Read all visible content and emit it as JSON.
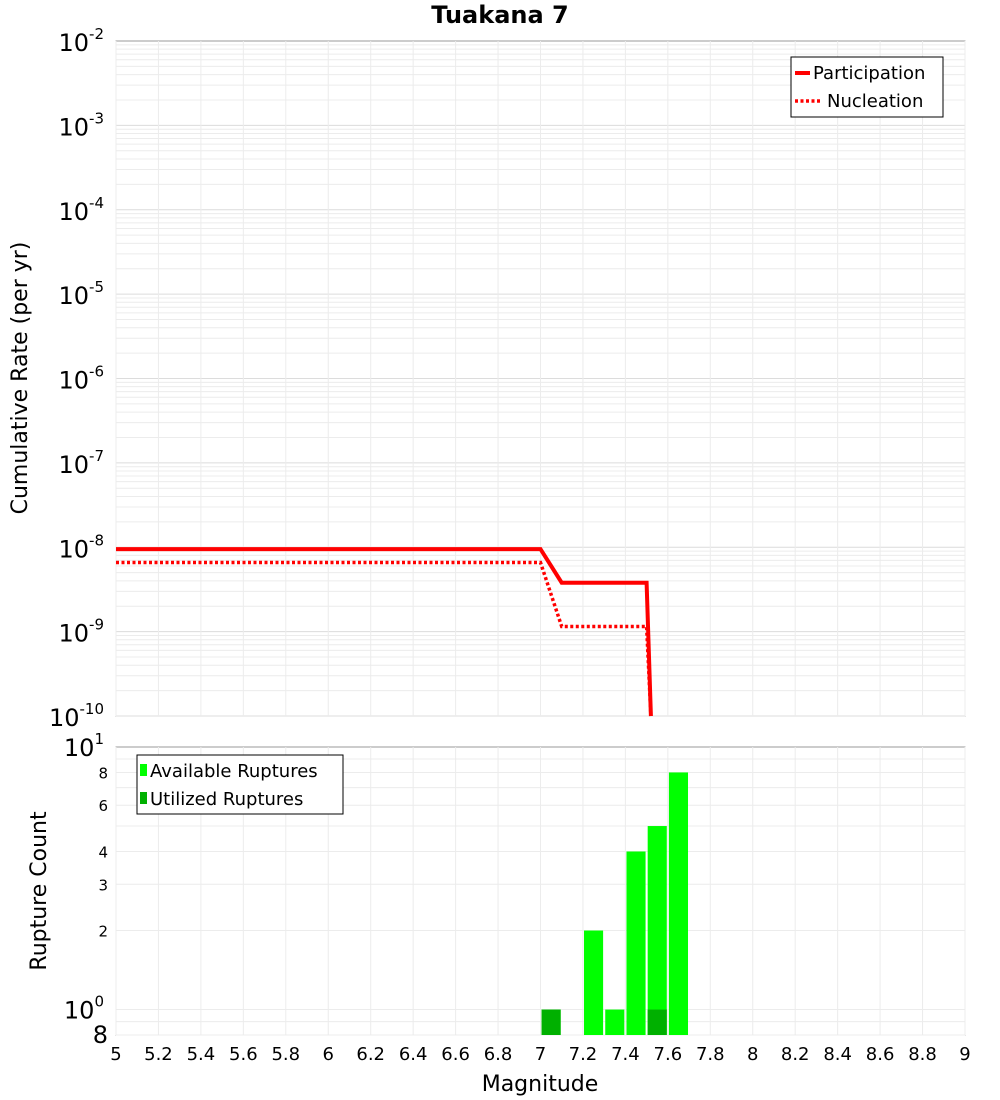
{
  "chart_data": [
    {
      "type": "line",
      "title": "Tuakana 7",
      "xlabel": "",
      "ylabel": "Cumulative Rate (per yr)",
      "xlim": [
        5,
        9
      ],
      "ylim": [
        1e-10,
        0.01
      ],
      "yscale": "log",
      "y_tick_exponents": [
        "-2",
        "-3",
        "-4",
        "-5",
        "-6",
        "-7",
        "-8",
        "-9",
        "-10"
      ],
      "y_tick_base": "10",
      "grid": true,
      "legend_position": "top-right",
      "series": [
        {
          "name": "Participation",
          "style": "solid",
          "color": "#ff0000",
          "x": [
            5.0,
            7.0,
            7.1,
            7.5,
            7.52
          ],
          "y": [
            9.5e-09,
            9.5e-09,
            3.8e-09,
            3.8e-09,
            1e-10
          ]
        },
        {
          "name": "Nucleation",
          "style": "dotted",
          "color": "#ff0000",
          "x": [
            5.0,
            7.0,
            7.1,
            7.5,
            7.52
          ],
          "y": [
            6.6e-09,
            6.6e-09,
            1.15e-09,
            1.15e-09,
            1e-10
          ]
        }
      ]
    },
    {
      "type": "bar",
      "title": "",
      "xlabel": "Magnitude",
      "ylabel": "Rupture Count",
      "xlim": [
        5,
        9
      ],
      "ylim": [
        0.8,
        10
      ],
      "yscale": "log",
      "x_ticks": [
        "5",
        "5.2",
        "5.4",
        "5.6",
        "5.8",
        "6",
        "6.2",
        "6.4",
        "6.6",
        "6.8",
        "7",
        "7.2",
        "7.4",
        "7.6",
        "7.8",
        "8",
        "8.2",
        "8.4",
        "8.6",
        "8.8",
        "9"
      ],
      "y_ticks": [
        {
          "v": 8,
          "label": "8"
        },
        {
          "v": 6,
          "label": "6"
        },
        {
          "v": 4,
          "label": "4"
        },
        {
          "v": 3,
          "label": "3"
        },
        {
          "v": 2,
          "label": "2"
        }
      ],
      "y_tick_major": [
        {
          "v": 10,
          "base": "10",
          "exp": "1"
        },
        {
          "v": 1,
          "base": "10",
          "exp": "0"
        },
        {
          "v": 0.8,
          "base": "8",
          "exp": ""
        }
      ],
      "grid": true,
      "legend_position": "top-left",
      "series": [
        {
          "name": "Available Ruptures",
          "color": "#00ff00",
          "x": [
            7.05,
            7.25,
            7.35,
            7.45,
            7.55,
            7.65
          ],
          "values": [
            1,
            2,
            1,
            4,
            5,
            8
          ]
        },
        {
          "name": "Utilized Ruptures",
          "color": "#00b000",
          "x": [
            7.05,
            7.55
          ],
          "values": [
            1,
            1
          ]
        }
      ]
    }
  ]
}
